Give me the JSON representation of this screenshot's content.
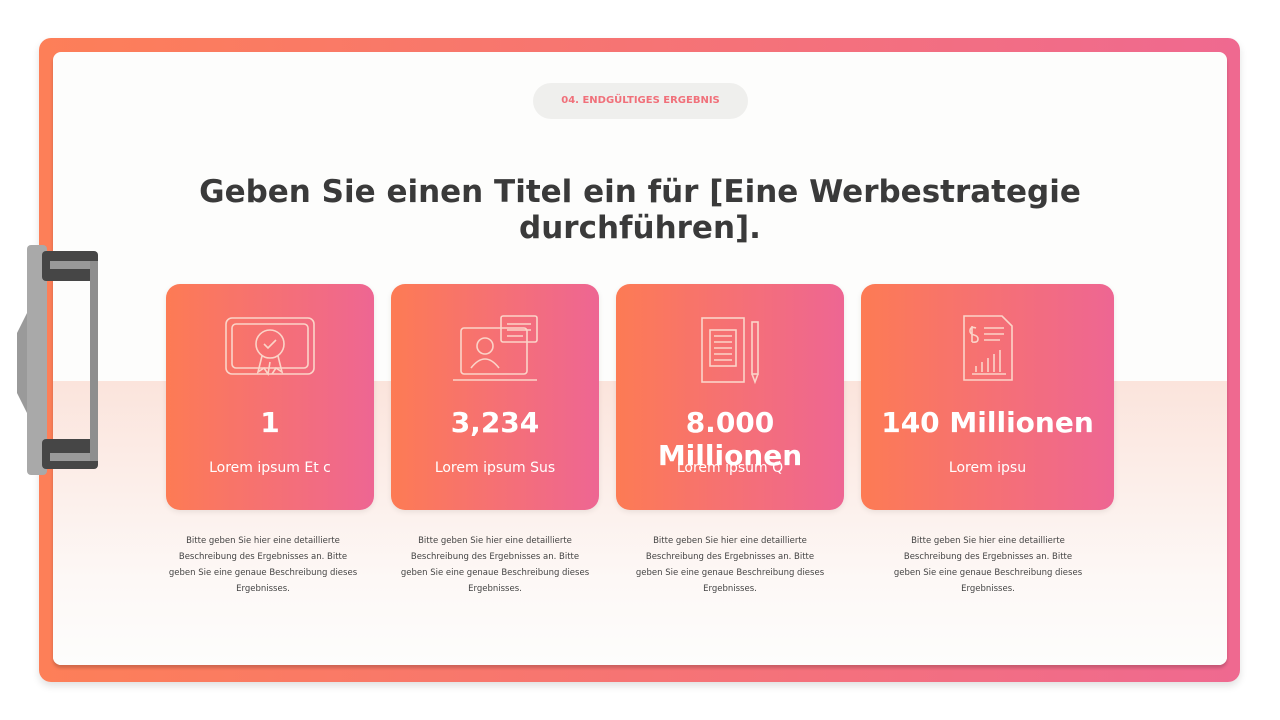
{
  "badge": "04. ENDGÜLTIGES ERGEBNIS",
  "title": "Geben Sie einen Titel ein für [Eine Werbestrategie durchführen].",
  "cards": [
    {
      "value": "1",
      "label": "Lorem ipsum Et c",
      "description": "Bitte geben Sie hier eine detaillierte Beschreibung des Ergebnisses an. Bitte geben Sie eine genaue Beschreibung dieses Ergebnisses."
    },
    {
      "value": "3,234",
      "label": "Lorem ipsum Sus",
      "description": "Bitte geben Sie hier eine detaillierte Beschreibung des Ergebnisses an. Bitte geben Sie eine genaue Beschreibung dieses Ergebnisses."
    },
    {
      "value": "8.000 Millionen",
      "label": "Lorem ipsum Q",
      "description": "Bitte geben Sie hier eine detaillierte Beschreibung des Ergebnisses an. Bitte geben Sie eine genaue Beschreibung dieses Ergebnisses."
    },
    {
      "value": "140 Millionen",
      "label": "Lorem ipsu",
      "description": "Bitte geben Sie hier eine detaillierte Beschreibung des Ergebnisses an. Bitte geben Sie eine genaue Beschreibung dieses Ergebnisses."
    }
  ]
}
